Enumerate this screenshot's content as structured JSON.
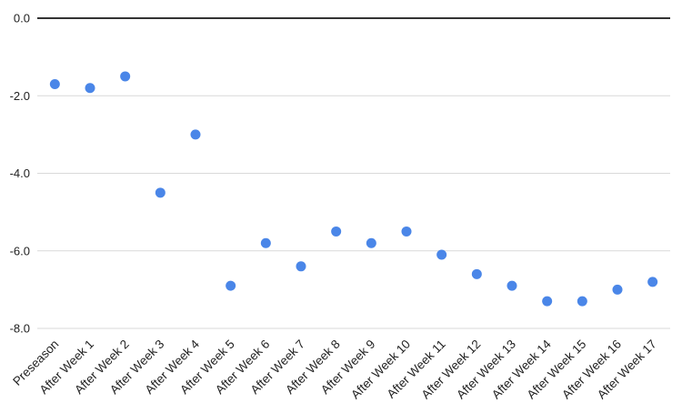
{
  "chart_data": {
    "type": "scatter",
    "title": "",
    "xlabel": "",
    "ylabel": "",
    "legend": "none",
    "grid": true,
    "categories": [
      "Preseason",
      "After Week 1",
      "After Week 2",
      "After Week 3",
      "After Week 4",
      "After Week 5",
      "After Week 6",
      "After Week 7",
      "After Week 8",
      "After Week 9",
      "After Week 10",
      "After Week 11",
      "After Week 12",
      "After Week 13",
      "After Week 14",
      "After Week 15",
      "After Week 16",
      "After Week 17"
    ],
    "values": [
      -1.7,
      -1.8,
      -1.5,
      -4.5,
      -3.0,
      -6.9,
      -5.8,
      -6.4,
      -5.5,
      -5.8,
      -5.5,
      -6.1,
      -6.6,
      -6.9,
      -7.3,
      -7.3,
      -7.0,
      -6.8
    ],
    "ylim": [
      -8.0,
      0.0
    ],
    "y_tick_values": [
      0,
      -2,
      -4,
      -6,
      -8
    ],
    "y_tick_labels": [
      "0.0",
      "-2.0",
      "-4.0",
      "-6.0",
      "-8.0"
    ],
    "x_label_rotation_deg": -45,
    "colors": {
      "point": "#4a86e8",
      "gridline": "#d9d9d9",
      "baseline": "#333333",
      "axis_label": "#222222",
      "background": "#ffffff"
    }
  }
}
